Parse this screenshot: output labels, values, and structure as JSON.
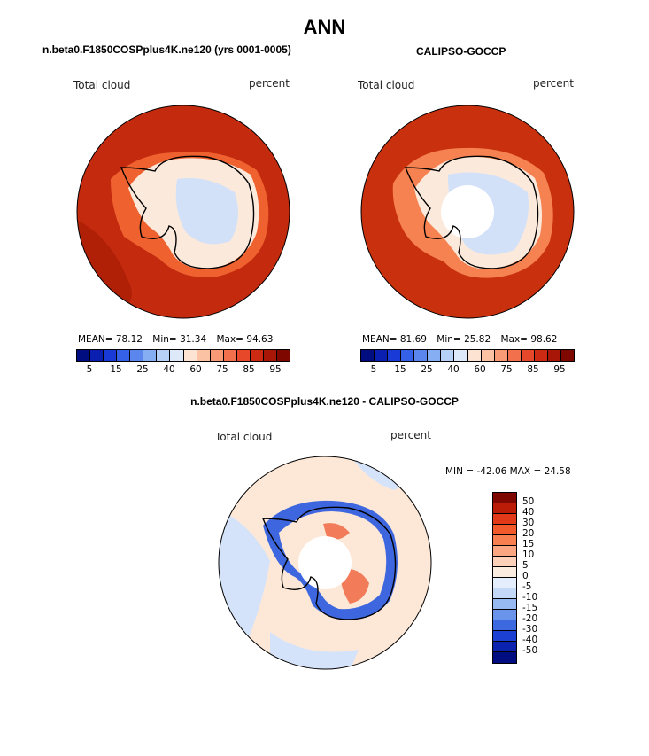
{
  "page": {
    "title": "ANN"
  },
  "panel_model": {
    "subtitle": "n.beta0.F1850COSPplus4K.ne120 (yrs 0001-0005)",
    "variable_label": "Total cloud",
    "units_label": "percent",
    "stats": {
      "mean_label": "MEAN=",
      "mean": "78.12",
      "min_label": "Min=",
      "min": "31.34",
      "max_label": "Max=",
      "max": "94.63"
    }
  },
  "panel_obs": {
    "subtitle": "CALIPSO-GOCCP",
    "variable_label": "Total cloud",
    "units_label": "percent",
    "stats": {
      "mean_label": "MEAN=",
      "mean": "81.69",
      "min_label": "Min=",
      "min": "25.82",
      "max_label": "Max=",
      "max": "98.62"
    }
  },
  "panel_diff": {
    "subtitle": "n.beta0.F1850COSPplus4K.ne120 - CALIPSO-GOCCP",
    "variable_label": "Total cloud",
    "units_label": "percent",
    "minmax_text": "MIN = -42.06 MAX =  24.58"
  },
  "colorbar_abs": {
    "colors": [
      "#000d80",
      "#0a1fb0",
      "#1a3ad8",
      "#3560e8",
      "#5a86ee",
      "#86aef2",
      "#b6d0f6",
      "#dde9f8",
      "#fde4d2",
      "#fbc3a4",
      "#f89a76",
      "#f3704c",
      "#e8482a",
      "#cc2a12",
      "#a81608",
      "#7e0800"
    ],
    "ticks": [
      "5",
      "15",
      "25",
      "40",
      "60",
      "75",
      "85",
      "95"
    ]
  },
  "colorbar_diff": {
    "colors": [
      "#7e0800",
      "#bb1c08",
      "#e23a18",
      "#f25a2c",
      "#f88050",
      "#fba680",
      "#fdd0ba",
      "#fbece0",
      "#e4eefc",
      "#c4d8f8",
      "#98baf2",
      "#6a94ea",
      "#3c68e0",
      "#1c40d2",
      "#0a22ae",
      "#000d80"
    ],
    "ticks": [
      "50",
      "40",
      "30",
      "20",
      "15",
      "10",
      "5",
      "0",
      "-5",
      "-10",
      "-15",
      "-20",
      "-30",
      "-40",
      "-50"
    ]
  },
  "fields": {
    "ocean_model": "#c42a0e",
    "ocean_model_dark": "#b02006",
    "ocean_obs": "#c8300e",
    "coast_ring_model": "#ef6230",
    "coast_ring_obs": "#f58250",
    "ice_interior": "#fbe9dc",
    "ice_low": "#d2e1f8",
    "diff_bg": "#fde8d8",
    "diff_blue": "#d5e3fa",
    "diff_coast": "#3e67df",
    "diff_red": "#f27c5a"
  }
}
